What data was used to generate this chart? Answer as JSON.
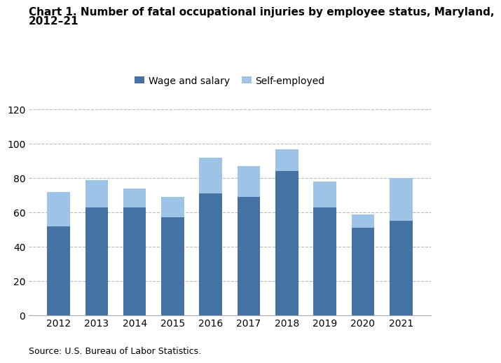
{
  "years": [
    "2012",
    "2013",
    "2014",
    "2015",
    "2016",
    "2017",
    "2018",
    "2019",
    "2020",
    "2021"
  ],
  "wage_and_salary": [
    52,
    63,
    63,
    57,
    71,
    69,
    84,
    63,
    51,
    55
  ],
  "self_employed": [
    20,
    16,
    11,
    12,
    21,
    18,
    13,
    15,
    8,
    25
  ],
  "wage_color": "#4472a4",
  "self_color": "#9dc3e6",
  "title_line1": "Chart 1. Number of fatal occupational injuries by employee status, Maryland,",
  "title_line2": "2012–21",
  "legend_labels": [
    "Wage and salary",
    "Self-employed"
  ],
  "ylim": [
    0,
    120
  ],
  "yticks": [
    0,
    20,
    40,
    60,
    80,
    100,
    120
  ],
  "source_text": "Source: U.S. Bureau of Labor Statistics.",
  "title_fontsize": 11,
  "tick_fontsize": 10,
  "source_fontsize": 9,
  "legend_fontsize": 10,
  "bar_width": 0.6
}
